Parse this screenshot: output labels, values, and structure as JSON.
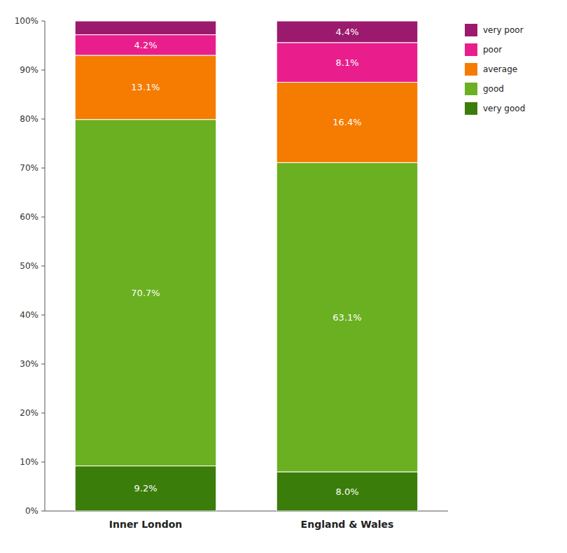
{
  "chart_data": {
    "type": "bar",
    "stacked": true,
    "grid": false,
    "legend": "right",
    "data_labels": true,
    "categories": [
      "Inner London",
      "England & Wales"
    ],
    "series": [
      {
        "name": "very good",
        "color": "#3a7d0a",
        "values": [
          9.2,
          8.0
        ],
        "value_labels": [
          "9.2%",
          "8.0%"
        ]
      },
      {
        "name": "good",
        "color": "#6ab020",
        "values": [
          70.7,
          63.1
        ],
        "value_labels": [
          "70.7%",
          "63.1%"
        ]
      },
      {
        "name": "average",
        "color": "#f57c00",
        "values": [
          13.1,
          16.4
        ],
        "value_labels": [
          "13.1%",
          "16.4%"
        ]
      },
      {
        "name": "poor",
        "color": "#e91e8c",
        "values": [
          4.2,
          8.1
        ],
        "value_labels": [
          "4.2%",
          "8.1%"
        ]
      },
      {
        "name": "very poor",
        "color": "#9c1a6e",
        "values": [
          2.8,
          4.4
        ],
        "value_labels": [
          null,
          "4.4%"
        ]
      }
    ],
    "ylim": [
      0,
      100
    ],
    "yticks": [
      {
        "value": 0,
        "label": "0%"
      },
      {
        "value": 10,
        "label": "10%"
      },
      {
        "value": 20,
        "label": "20%"
      },
      {
        "value": 30,
        "label": "30%"
      },
      {
        "value": 40,
        "label": "40%"
      },
      {
        "value": 50,
        "label": "50%"
      },
      {
        "value": 60,
        "label": "60%"
      },
      {
        "value": 70,
        "label": "70%"
      },
      {
        "value": 80,
        "label": "80%"
      },
      {
        "value": 90,
        "label": "90%"
      },
      {
        "value": 100,
        "label": "100%"
      }
    ]
  }
}
